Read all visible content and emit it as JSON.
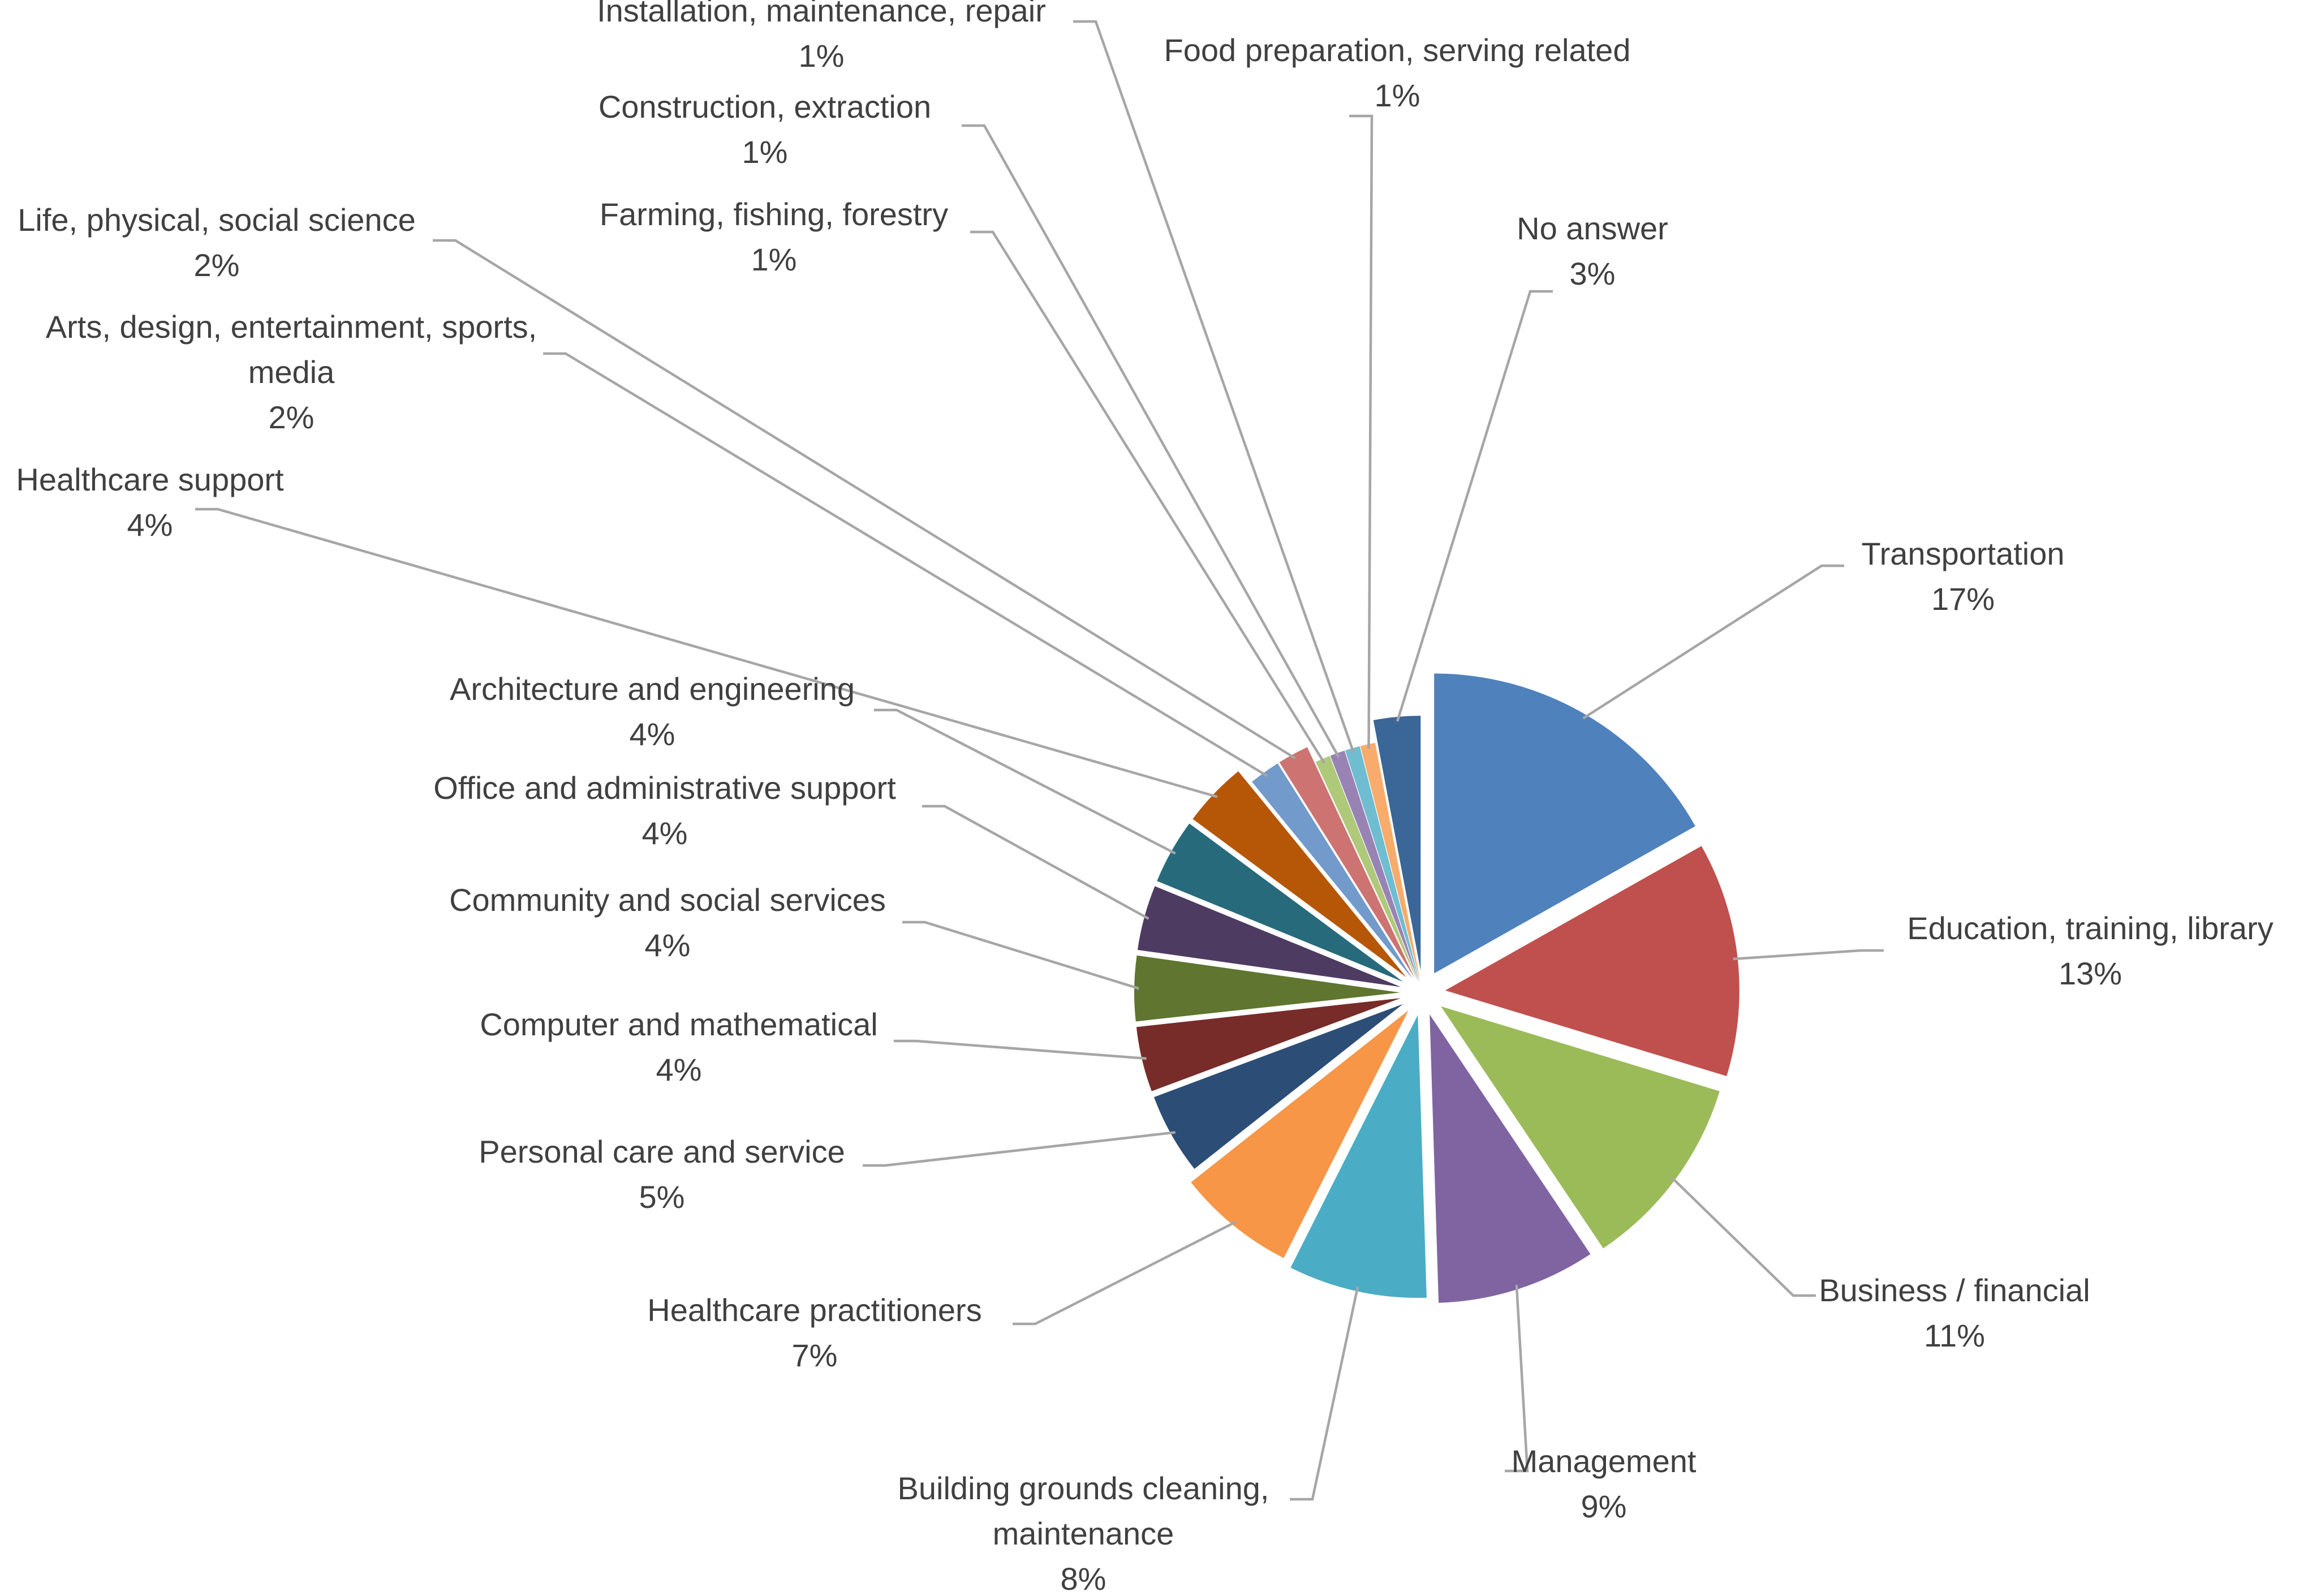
{
  "chart_data": {
    "type": "pie",
    "title": "",
    "slices": [
      {
        "label": "Transportation",
        "value": 17,
        "value_label": "17%",
        "color": "#4F81BD"
      },
      {
        "label": "Education, training,  library",
        "value": 13,
        "value_label": "13%",
        "color": "#C0504D"
      },
      {
        "label": "Business / financial",
        "value": 11,
        "value_label": "11%",
        "color": "#9BBB59"
      },
      {
        "label": "Management",
        "value": 9,
        "value_label": "9%",
        "color": "#8064A2"
      },
      {
        "label": "Building grounds cleaning, maintenance",
        "value": 8,
        "value_label": "8%",
        "color": "#4BACC6"
      },
      {
        "label": "Healthcare practitioners",
        "value": 7,
        "value_label": "7%",
        "color": "#F79646"
      },
      {
        "label": "Personal care and service",
        "value": 5,
        "value_label": "5%",
        "color": "#2C4D75"
      },
      {
        "label": "Computer and mathematical",
        "value": 4,
        "value_label": "4%",
        "color": "#772C2A"
      },
      {
        "label": "Community and social services",
        "value": 4,
        "value_label": "4%",
        "color": "#5F7530"
      },
      {
        "label": "Office and administrative support",
        "value": 4,
        "value_label": "4%",
        "color": "#4D3B62"
      },
      {
        "label": "Architecture and engineering",
        "value": 4,
        "value_label": "4%",
        "color": "#276A7C"
      },
      {
        "label": "Healthcare support",
        "value": 4,
        "value_label": "4%",
        "color": "#B65708"
      },
      {
        "label": "Arts, design, entertainment, sports, media",
        "value": 2,
        "value_label": "2%",
        "color": "#729ACA"
      },
      {
        "label": "Life, physical, social science",
        "value": 2,
        "value_label": "2%",
        "color": "#CD7371"
      },
      {
        "label": "Farming, fishing, forestry",
        "value": 1,
        "value_label": "1%",
        "color": "#AFC97A"
      },
      {
        "label": "Construction, extraction",
        "value": 1,
        "value_label": "1%",
        "color": "#9983B5"
      },
      {
        "label": "Installation, maintenance, repair",
        "value": 1,
        "value_label": "1%",
        "color": "#6FBDD1"
      },
      {
        "label": "Food preparation, serving related",
        "value": 1,
        "value_label": "1%",
        "color": "#F9AB6B"
      },
      {
        "label": "No answer",
        "value": 3,
        "value_label": "3%",
        "color": "#3A6698"
      }
    ]
  }
}
